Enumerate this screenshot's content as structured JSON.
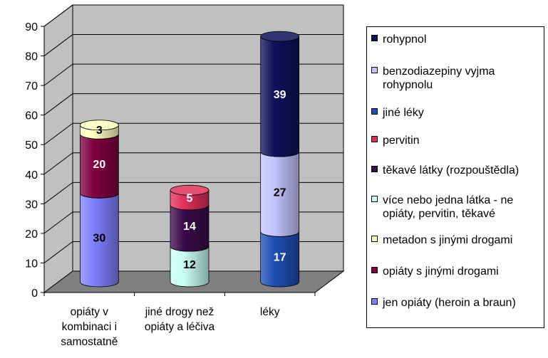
{
  "chart_data": {
    "type": "bar",
    "stacked": true,
    "style": "3d-cylinder",
    "categories": [
      "opiáty  v kombinaci i samostatně",
      "jiné drogy než opiáty a léčiva",
      "léky"
    ],
    "category_lines": [
      [
        "opiáty  v",
        "kombinaci i",
        "samostatně"
      ],
      [
        "jiné drogy než",
        "opiáty a léčiva"
      ],
      [
        "léky"
      ]
    ],
    "ylim": [
      0,
      90
    ],
    "yticks": [
      0,
      10,
      20,
      30,
      40,
      50,
      60,
      70,
      80,
      90
    ],
    "grid": true,
    "legend_position": "right",
    "series": [
      {
        "name": "jen opiáty (heroin a braun)",
        "color": "#8080ff",
        "values": [
          30,
          0,
          0
        ]
      },
      {
        "name": "opiáty s jinými drogami",
        "color": "#800040",
        "values": [
          20,
          0,
          0
        ]
      },
      {
        "name": "metadon s jinými drogami",
        "color": "#ffffc0",
        "values": [
          3,
          0,
          0
        ]
      },
      {
        "name": "více nebo jedna látka - ne opiáty, pervitin, těkavé",
        "color": "#c8fff4",
        "values": [
          0,
          12,
          0
        ]
      },
      {
        "name": "těkavé látky (rozpouštědla)",
        "color": "#3a0a4a",
        "values": [
          0,
          14,
          0
        ]
      },
      {
        "name": "pervitin",
        "color": "#e0305a",
        "values": [
          0,
          5,
          0
        ]
      },
      {
        "name": "jiné léky",
        "color": "#1e4fb4",
        "values": [
          0,
          0,
          17
        ]
      },
      {
        "name": "benzodiazepiny vyjma rohypnolu",
        "color": "#c4c4ff",
        "values": [
          0,
          0,
          27
        ]
      },
      {
        "name": "rohypnol",
        "color": "#10105a",
        "values": [
          0,
          0,
          39
        ]
      }
    ]
  },
  "legend": {
    "items": [
      {
        "lines": [
          "rohypnol"
        ],
        "color": "#10105a"
      },
      {
        "lines": [
          "benzodiazepiny vyjma",
          "rohypnolu"
        ],
        "color": "#c4c4ff"
      },
      {
        "lines": [
          "jiné léky"
        ],
        "color": "#1e4fb4"
      },
      {
        "lines": [
          "pervitin"
        ],
        "color": "#e0305a"
      },
      {
        "lines": [
          "těkavé látky (rozpouštědla)"
        ],
        "color": "#3a0a4a"
      },
      {
        "lines": [
          "více nebo jedna látka - ne",
          "opiáty, pervitin, těkavé"
        ],
        "color": "#c8fff4"
      },
      {
        "lines": [
          "metadon s jinými drogami"
        ],
        "color": "#ffffc0"
      },
      {
        "lines": [
          "opiáty s jinými drogami"
        ],
        "color": "#800040"
      },
      {
        "lines": [
          "jen opiáty (heroin a braun)"
        ],
        "color": "#8080ff"
      }
    ]
  }
}
